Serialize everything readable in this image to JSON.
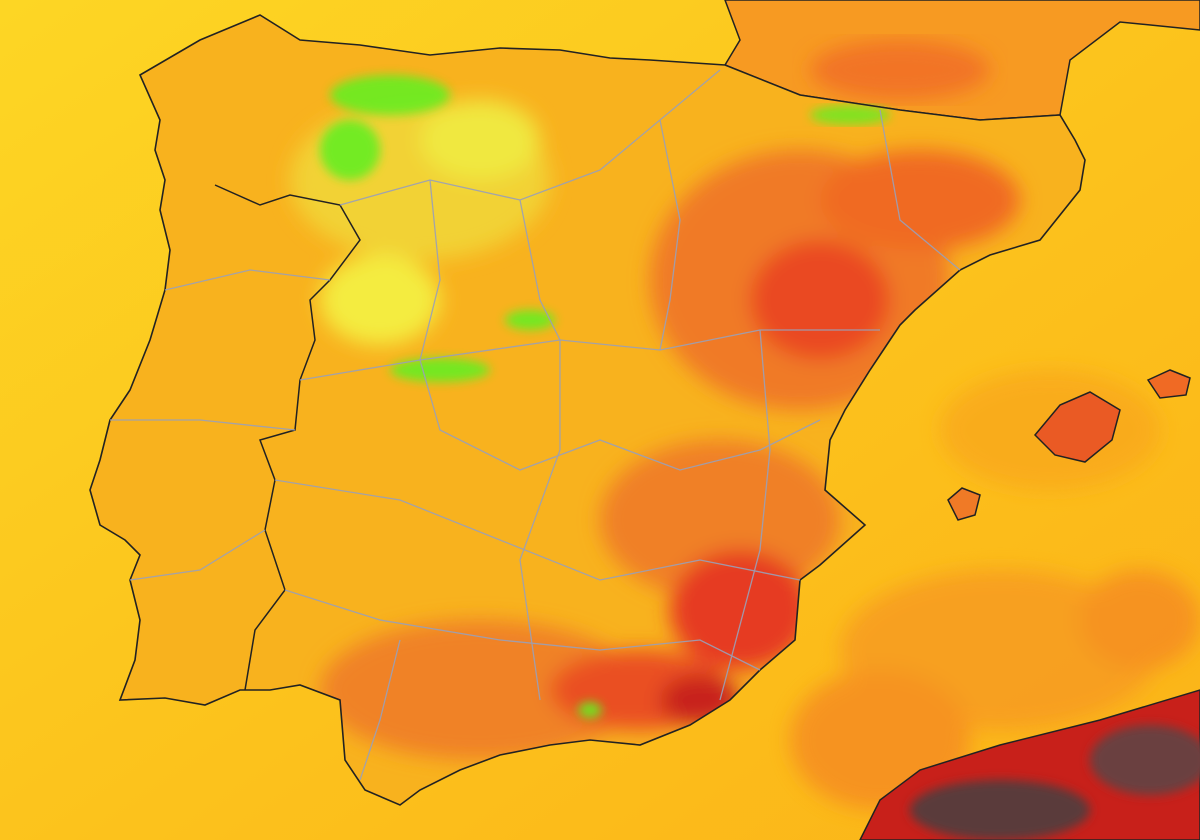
{
  "map": {
    "colors": {
      "sea_west": "#fdd624",
      "sea_east": "#fbb81a",
      "land_base": "#f8b21e",
      "land_cool": "#f2e23a",
      "land_cold": "#66ee22",
      "land_warm": "#f58a25",
      "land_hot": "#ef4e22",
      "land_very_hot": "#c8201a",
      "land_extreme": "#5a3a3a",
      "coastline": "#222222",
      "borders": "#9aa0b8"
    }
  }
}
